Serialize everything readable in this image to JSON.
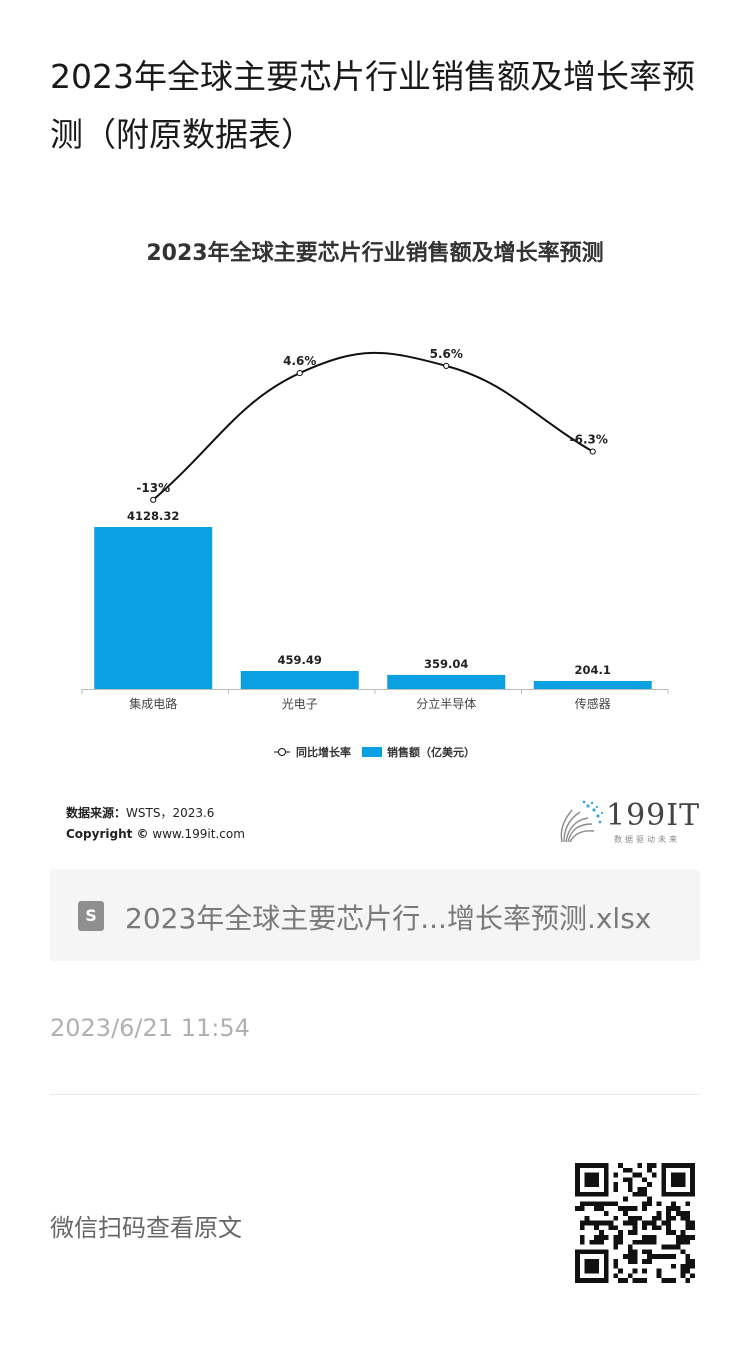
{
  "article": {
    "title": "2023年全球主要芯片行业销售额及增长率预测（附原数据表）"
  },
  "chart": {
    "title": "2023年全球主要芯片行业销售额及增长率预测",
    "legend_growth": "同比增长率",
    "legend_sales": "销售额（亿美元）"
  },
  "chart_data": {
    "type": "bar",
    "title": "2023年全球主要芯片行业销售额及增长率预测",
    "categories": [
      "集成电路",
      "光电子",
      "分立半导体",
      "传感器"
    ],
    "series": [
      {
        "name": "销售额（亿美元）",
        "type": "bar",
        "values": [
          4128.32,
          459.49,
          359.04,
          204.1
        ],
        "labels": [
          "4128.32",
          "459.49",
          "359.04",
          "204.1"
        ],
        "color": "#0aa0e2"
      },
      {
        "name": "同比增长率",
        "type": "line",
        "values": [
          -13,
          4.6,
          5.6,
          -6.3
        ],
        "labels": [
          "-13%",
          "4.6%",
          "5.6%",
          "-6.3%"
        ],
        "color": "#111111"
      }
    ],
    "legend_position": "bottom",
    "grid": false
  },
  "source": {
    "label": "数据来源：",
    "value": "WSTS，2023.6",
    "copyright_label": "Copyright ©",
    "copyright_value": "www.199it.com"
  },
  "logo": {
    "text": "199IT",
    "tagline": "数据驱动未来"
  },
  "attachment": {
    "icon": "spreadsheet-file-icon",
    "icon_glyph": "S",
    "filename": "2023年全球主要芯片行...增长率预测.xlsx"
  },
  "meta": {
    "timestamp": "2023/6/21 11:54"
  },
  "footer": {
    "scan_text": "微信扫码查看原文",
    "qr_icon": "qr-code-icon"
  }
}
